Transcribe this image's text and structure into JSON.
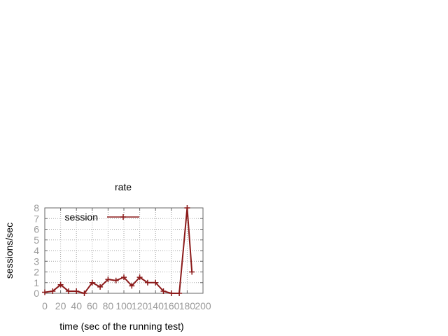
{
  "chart_data": {
    "type": "line",
    "title": "rate",
    "xlabel": "time (sec of the running test)",
    "ylabel": "sessions/sec",
    "xlim": [
      0,
      200
    ],
    "ylim": [
      0,
      8
    ],
    "xticks": [
      0,
      20,
      40,
      60,
      80,
      100,
      120,
      140,
      160,
      180,
      200
    ],
    "yticks": [
      0,
      1,
      2,
      3,
      4,
      5,
      6,
      7,
      8
    ],
    "grid": true,
    "legend_position": "top-left",
    "series": [
      {
        "name": "session",
        "color": "#8b1a1a",
        "marker": "plus",
        "x": [
          0,
          10,
          20,
          30,
          40,
          50,
          60,
          70,
          80,
          90,
          100,
          110,
          120,
          130,
          140,
          150,
          160,
          170,
          180,
          186
        ],
        "y": [
          0.1,
          0.2,
          0.8,
          0.2,
          0.2,
          0.0,
          1.0,
          0.6,
          1.3,
          1.2,
          1.5,
          0.7,
          1.5,
          1.0,
          1.0,
          0.2,
          0.0,
          0.0,
          8.0,
          2.0
        ]
      }
    ]
  }
}
